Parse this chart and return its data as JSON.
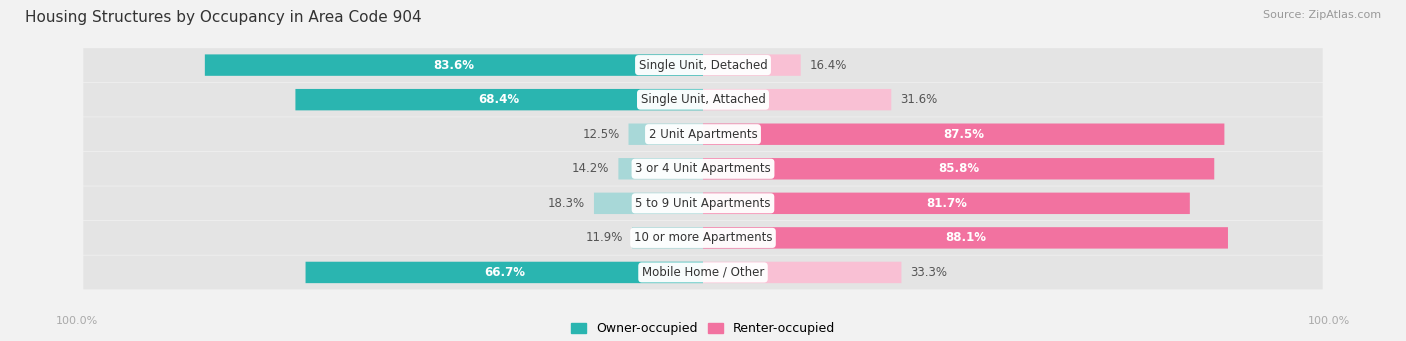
{
  "title": "Housing Structures by Occupancy in Area Code 904",
  "source": "Source: ZipAtlas.com",
  "categories": [
    "Single Unit, Detached",
    "Single Unit, Attached",
    "2 Unit Apartments",
    "3 or 4 Unit Apartments",
    "5 to 9 Unit Apartments",
    "10 or more Apartments",
    "Mobile Home / Other"
  ],
  "owner_pct": [
    83.6,
    68.4,
    12.5,
    14.2,
    18.3,
    11.9,
    66.7
  ],
  "renter_pct": [
    16.4,
    31.6,
    87.5,
    85.8,
    81.7,
    88.1,
    33.3
  ],
  "owner_color_strong": "#2ab5b0",
  "owner_color_light": "#a8d8d8",
  "renter_color_strong": "#f272a0",
  "renter_color_light": "#f9c0d4",
  "bg_color": "#f2f2f2",
  "row_bg_color": "#e4e4e4",
  "title_fontsize": 11,
  "source_fontsize": 8,
  "label_fontsize": 8.5,
  "pct_fontsize": 8.5,
  "legend_fontsize": 9,
  "axis_label_fontsize": 8
}
